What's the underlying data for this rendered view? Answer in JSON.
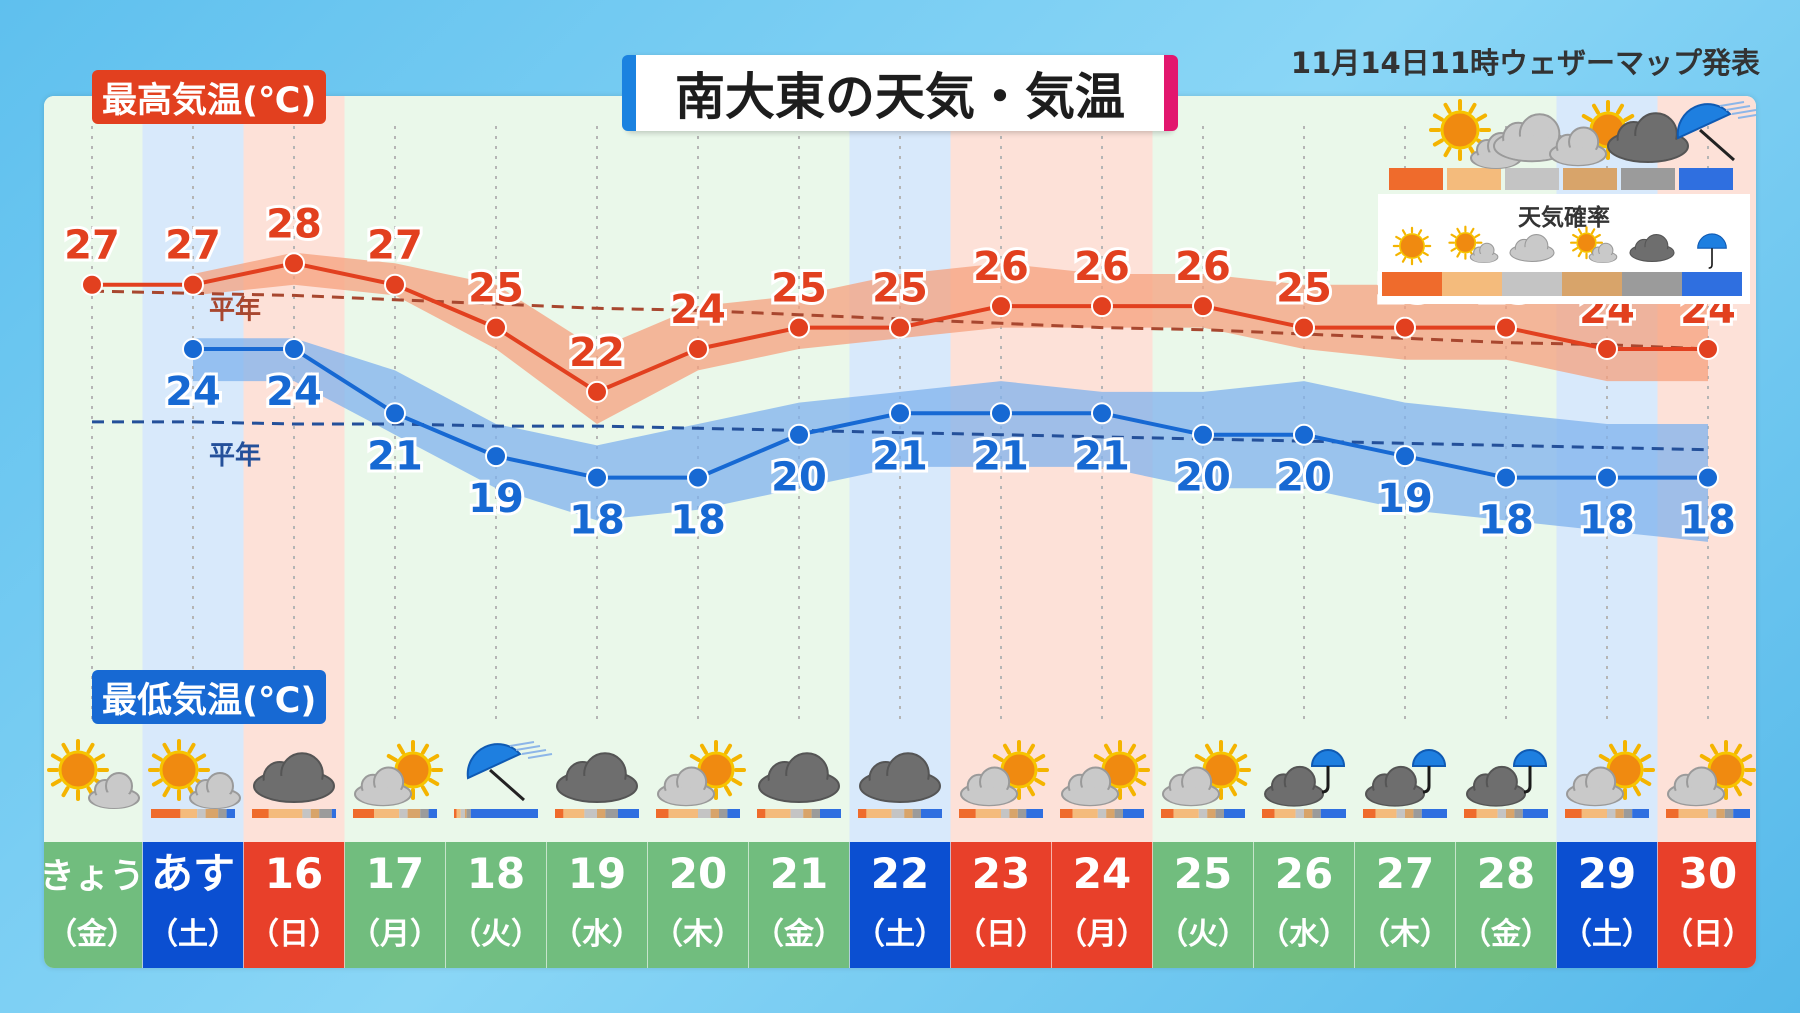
{
  "header": {
    "title": "南大東の天気・気温",
    "issued": "11月14日11時ウェザーマップ発表"
  },
  "labels": {
    "high_tag": "最高気温(℃)",
    "low_tag": "最低気温(℃)",
    "normal_label": "平年",
    "legend_title": "天気確率"
  },
  "colors": {
    "high_line": "#e2401f",
    "high_band": "#f5a07e",
    "low_line": "#1769d3",
    "low_band": "#7fb2ee",
    "weekday_col": "#eaf8ea",
    "saturday_col": "#d8e9fb",
    "sunday_col": "#fde1d8",
    "weekday_cell": "#71bd7e",
    "saturday_cell": "#0b4fd1",
    "sunday_cell": "#e8402a"
  },
  "legend": [
    {
      "icon": "sunny-icon",
      "color": "#ef6b2c"
    },
    {
      "icon": "sunny-cloudy-icon",
      "color": "#f4bb7c"
    },
    {
      "icon": "cloudy-icon",
      "color": "#c4c4c4"
    },
    {
      "icon": "cloudy-sunny-icon",
      "color": "#d8a46a"
    },
    {
      "icon": "overcast-icon",
      "color": "#9b9b9b"
    },
    {
      "icon": "rain-icon",
      "color": "#2f6fe0"
    }
  ],
  "chart_data": {
    "type": "line",
    "title": "南大東の天気・気温",
    "ylim": [
      10,
      31
    ],
    "grid": true,
    "days": [
      {
        "date": "きょう",
        "dow": "（金）",
        "type": "weekday",
        "weather": "sunny-cloudy-icon",
        "probs": [
          0,
          0,
          0,
          0,
          0,
          0
        ]
      },
      {
        "date": "あす",
        "dow": "（土）",
        "type": "saturday",
        "weather": "sunny-cloudy-icon",
        "probs": [
          0.35,
          0.2,
          0.1,
          0.15,
          0.1,
          0.1
        ]
      },
      {
        "date": "16",
        "dow": "（日）",
        "type": "sunday",
        "weather": "overcast-icon",
        "probs": [
          0.2,
          0.4,
          0.1,
          0.1,
          0.15,
          0.05
        ]
      },
      {
        "date": "17",
        "dow": "（月）",
        "type": "weekday",
        "weather": "cloudy-sunny-icon",
        "probs": [
          0.25,
          0.3,
          0.1,
          0.15,
          0.1,
          0.1
        ]
      },
      {
        "date": "18",
        "dow": "（火）",
        "type": "weekday",
        "weather": "rain-icon",
        "probs": [
          0.03,
          0.05,
          0.05,
          0.02,
          0.05,
          0.8
        ]
      },
      {
        "date": "19",
        "dow": "（水）",
        "type": "weekday",
        "weather": "overcast-icon",
        "probs": [
          0.1,
          0.25,
          0.15,
          0.1,
          0.15,
          0.25
        ]
      },
      {
        "date": "20",
        "dow": "（木）",
        "type": "weekday",
        "weather": "cloudy-sunny-icon",
        "probs": [
          0.15,
          0.35,
          0.15,
          0.1,
          0.1,
          0.15
        ]
      },
      {
        "date": "21",
        "dow": "（金）",
        "type": "weekday",
        "weather": "overcast-icon",
        "probs": [
          0.1,
          0.3,
          0.15,
          0.1,
          0.1,
          0.25
        ]
      },
      {
        "date": "22",
        "dow": "（土）",
        "type": "saturday",
        "weather": "overcast-icon",
        "probs": [
          0.1,
          0.3,
          0.15,
          0.1,
          0.1,
          0.25
        ]
      },
      {
        "date": "23",
        "dow": "（日）",
        "type": "sunday",
        "weather": "cloudy-sunny-icon",
        "probs": [
          0.2,
          0.3,
          0.1,
          0.1,
          0.1,
          0.2
        ]
      },
      {
        "date": "24",
        "dow": "（月）",
        "type": "sunday",
        "weather": "cloudy-sunny-icon",
        "probs": [
          0.15,
          0.3,
          0.1,
          0.1,
          0.1,
          0.25
        ]
      },
      {
        "date": "25",
        "dow": "（火）",
        "type": "weekday",
        "weather": "cloudy-sunny-icon",
        "probs": [
          0.15,
          0.3,
          0.1,
          0.1,
          0.1,
          0.25
        ]
      },
      {
        "date": "26",
        "dow": "（水）",
        "type": "weekday",
        "weather": "rain-cloud-icon",
        "probs": [
          0.15,
          0.25,
          0.1,
          0.1,
          0.1,
          0.3
        ]
      },
      {
        "date": "27",
        "dow": "（木）",
        "type": "weekday",
        "weather": "rain-cloud-icon",
        "probs": [
          0.15,
          0.25,
          0.1,
          0.1,
          0.1,
          0.3
        ]
      },
      {
        "date": "28",
        "dow": "（金）",
        "type": "weekday",
        "weather": "rain-cloud-icon",
        "probs": [
          0.15,
          0.25,
          0.1,
          0.1,
          0.1,
          0.3
        ]
      },
      {
        "date": "29",
        "dow": "（土）",
        "type": "saturday",
        "weather": "cloudy-sunny-icon",
        "probs": [
          0.2,
          0.3,
          0.1,
          0.1,
          0.1,
          0.2
        ]
      },
      {
        "date": "30",
        "dow": "（日）",
        "type": "sunday",
        "weather": "cloudy-sunny-icon",
        "probs": [
          0.15,
          0.35,
          0.1,
          0.1,
          0.1,
          0.2
        ]
      }
    ],
    "series": [
      {
        "name": "最高気温(℃)",
        "values": [
          27,
          27,
          28,
          27,
          25,
          22,
          24,
          25,
          25,
          26,
          26,
          26,
          25,
          25,
          25,
          24,
          24
        ],
        "band_low": [
          null,
          26.5,
          27,
          26.5,
          24,
          20.5,
          23,
          24,
          24.5,
          25,
          25,
          25,
          24,
          23.5,
          23.5,
          22.5,
          22.5
        ],
        "band_high": [
          null,
          27.5,
          28.5,
          28,
          27,
          24,
          26,
          26.5,
          27.5,
          28,
          27.5,
          27.5,
          27,
          27,
          27,
          27,
          26.5
        ],
        "normal": [
          26.7,
          26.6,
          26.5,
          26.3,
          26.1,
          25.9,
          25.8,
          25.6,
          25.4,
          25.2,
          25.0,
          24.9,
          24.7,
          24.5,
          24.3,
          24.2,
          24.0
        ]
      },
      {
        "name": "最低気温(℃)",
        "values": [
          null,
          24,
          24,
          21,
          19,
          18,
          18,
          20,
          21,
          21,
          21,
          20,
          20,
          19,
          18,
          18,
          18
        ],
        "value_labels": [
          null,
          24,
          24,
          21,
          19,
          18,
          18,
          20,
          21,
          21,
          21,
          20,
          20,
          19,
          18,
          18,
          18
        ],
        "band_low": [
          null,
          22.5,
          22.5,
          20,
          17.5,
          16,
          16.5,
          17.5,
          18.5,
          18.5,
          18.5,
          17.5,
          17.5,
          16.5,
          16,
          15.5,
          15
        ],
        "band_high": [
          null,
          24.5,
          24.5,
          23,
          20.5,
          19.5,
          20.5,
          21.5,
          22,
          22.5,
          22,
          22,
          22.5,
          21.5,
          21,
          20.5,
          20.5
        ],
        "normal": [
          20.6,
          20.6,
          20.5,
          20.5,
          20.4,
          20.4,
          20.3,
          20.2,
          20.1,
          20.0,
          19.9,
          19.8,
          19.7,
          19.6,
          19.5,
          19.4,
          19.3
        ]
      }
    ]
  }
}
